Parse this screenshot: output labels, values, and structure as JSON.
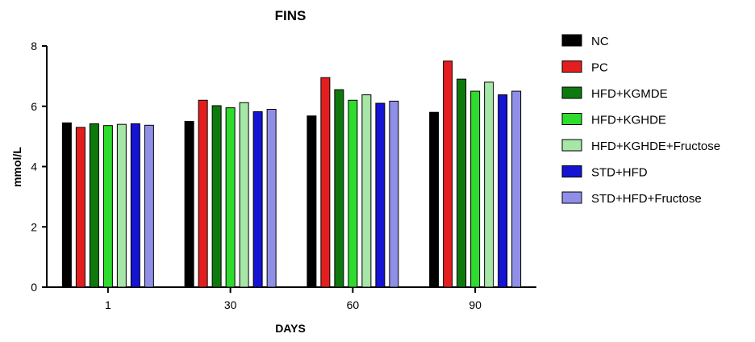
{
  "chart_data": {
    "type": "bar",
    "title": "FINS",
    "xlabel": "DAYS",
    "ylabel": "mmol/L",
    "categories": [
      "1",
      "30",
      "60",
      "90"
    ],
    "ylim": [
      0,
      8
    ],
    "yticks": [
      "0",
      "2",
      "4",
      "6",
      "8"
    ],
    "legend_position": "right",
    "grid": false,
    "series": [
      {
        "name": "NC",
        "color": "#000000",
        "values": [
          5.45,
          5.5,
          5.68,
          5.8
        ]
      },
      {
        "name": "PC",
        "color": "#e41e1e",
        "values": [
          5.3,
          6.2,
          6.95,
          7.5
        ]
      },
      {
        "name": "HFD+KGMDE",
        "color": "#0e7a0e",
        "values": [
          5.42,
          6.02,
          6.55,
          6.9
        ]
      },
      {
        "name": "HFD+KGHDE",
        "color": "#2ddc2d",
        "values": [
          5.36,
          5.95,
          6.2,
          6.5
        ]
      },
      {
        "name": "HFD+KGHDE+Fructose",
        "color": "#a6e6a6",
        "values": [
          5.4,
          6.12,
          6.38,
          6.8
        ]
      },
      {
        "name": "STD+HFD",
        "color": "#1414d2",
        "values": [
          5.42,
          5.82,
          6.1,
          6.38
        ]
      },
      {
        "name": "STD+HFD+Fructose",
        "color": "#8f8fe8",
        "values": [
          5.37,
          5.9,
          6.17,
          6.5
        ]
      }
    ]
  }
}
